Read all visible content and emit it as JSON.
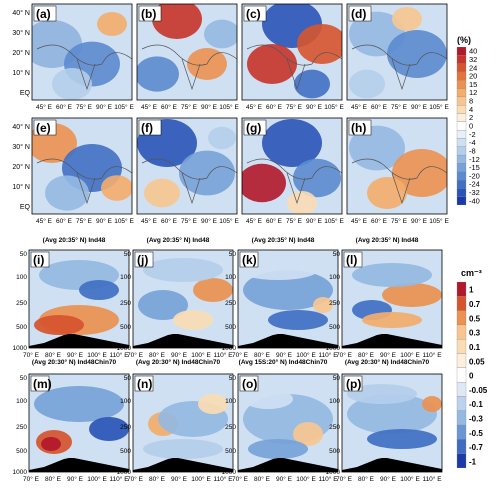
{
  "figure": {
    "top_panels": [
      {
        "label": "(a)"
      },
      {
        "label": "(b)"
      },
      {
        "label": "(c)"
      },
      {
        "label": "(d)"
      },
      {
        "label": "(e)"
      },
      {
        "label": "(f)"
      },
      {
        "label": "(g)"
      },
      {
        "label": "(h)"
      }
    ],
    "map_axes": {
      "y_ticks": [
        "40° N",
        "30° N",
        "20° N",
        "10° N",
        "EQ"
      ],
      "x_ticks": [
        "45° E",
        "60° E",
        "75° E",
        "90° E",
        "105° E"
      ]
    },
    "colorbar_top": {
      "unit": "(%)",
      "ticks": [
        "40",
        "32",
        "24",
        "20",
        "15",
        "12",
        "8",
        "4",
        "2",
        "0",
        "-2",
        "-4",
        "-8",
        "-12",
        "-15",
        "-20",
        "-24",
        "-32",
        "-40"
      ],
      "colors": [
        "#b2182b",
        "#c7342a",
        "#d6542e",
        "#e2733a",
        "#ec9150",
        "#f3ad6c",
        "#f7c690",
        "#fadcb5",
        "#fdeedd",
        "#ffffff",
        "#e6f0fa",
        "#cfe0f3",
        "#b4ceeb",
        "#95b9e2",
        "#77a2d8",
        "#5b8bcf",
        "#4070c4",
        "#2a55b8",
        "#1b3aa8"
      ]
    },
    "cross_sections": {
      "row1": {
        "titles": [
          "(Avg 20:35° N) Ind48",
          "(Avg 20:35° N) Ind48",
          "(Avg 20:35° N) Ind48",
          "(Avg 20:35° N) Ind48"
        ],
        "labels": [
          "(i)",
          "(j)",
          "(k)",
          "(l)"
        ]
      },
      "row2": {
        "titles": [
          "(Avg 20:30° N) Ind48Chin70",
          "(Avg 20:30° N) Ind48Chin70",
          "(Avg 15S:20° N) Ind48Chin70",
          "(Avg 20:30° N) Ind48Chin70"
        ],
        "labels": [
          "(m)",
          "(n)",
          "(o)",
          "(p)"
        ]
      },
      "y_ticks": [
        "50",
        "100",
        "250",
        "500",
        "1000"
      ],
      "x_ticks": [
        "70° E",
        "80° E",
        "90° E",
        "100° E",
        "110° E"
      ]
    },
    "colorbar_bottom": {
      "unit": "cm⁻³",
      "ticks": [
        "1",
        "0.7",
        "0.5",
        "0.3",
        "0.1",
        "0.05",
        "0",
        "-0.05",
        "-0.1",
        "-0.3",
        "-0.5",
        "-0.7",
        "-1"
      ],
      "colors": [
        "#b2182b",
        "#d6542e",
        "#ec9150",
        "#f7c690",
        "#fadcb5",
        "#fdeedd",
        "#ffffff",
        "#dfe9f6",
        "#bdd2ee",
        "#95b9e2",
        "#6a96d3",
        "#3f6cc2",
        "#1b3aa8"
      ]
    }
  }
}
